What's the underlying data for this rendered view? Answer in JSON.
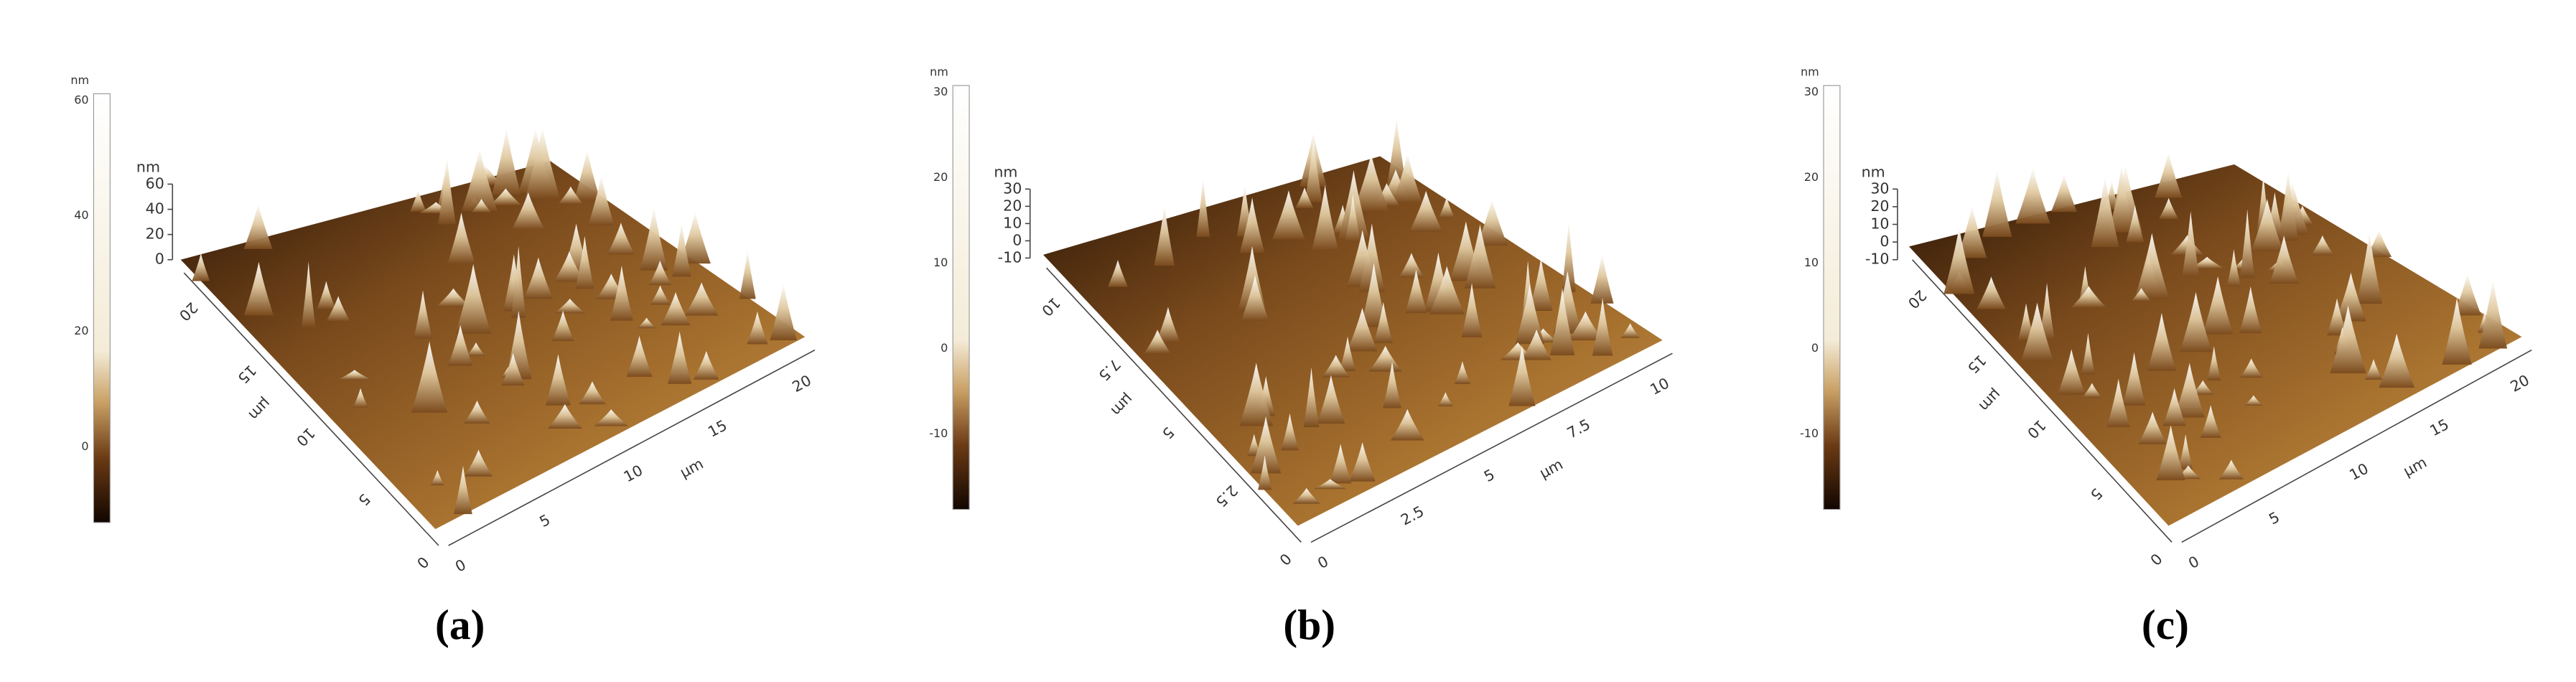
{
  "panels": [
    {
      "label": "(a)",
      "colorbar": {
        "unit": "nm",
        "ticks": [
          "60",
          "40",
          "20",
          "0"
        ]
      },
      "z_axis": {
        "unit": "nm",
        "ticks": [
          "60",
          "40",
          "20",
          "0"
        ]
      },
      "y_axis": {
        "unit": "µm",
        "ticks": [
          "0",
          "5",
          "10",
          "15",
          "20"
        ]
      },
      "x_axis": {
        "unit": "µm",
        "ticks": [
          "0",
          "5",
          "10",
          "15",
          "20"
        ]
      }
    },
    {
      "label": "(b)",
      "colorbar": {
        "unit": "nm",
        "ticks": [
          "30",
          "20",
          "10",
          "0",
          "-10"
        ]
      },
      "z_axis": {
        "unit": "nm",
        "ticks": [
          "30",
          "20",
          "10",
          "0",
          "-10"
        ]
      },
      "y_axis": {
        "unit": "µm",
        "ticks": [
          "0",
          "2.5",
          "5",
          "7.5",
          "10"
        ]
      },
      "x_axis": {
        "unit": "µm",
        "ticks": [
          "0",
          "2.5",
          "5",
          "7.5",
          "10"
        ]
      }
    },
    {
      "label": "(c)",
      "colorbar": {
        "unit": "nm",
        "ticks": [
          "30",
          "20",
          "10",
          "0",
          "-10"
        ]
      },
      "z_axis": {
        "unit": "nm",
        "ticks": [
          "30",
          "20",
          "10",
          "0",
          "-10"
        ]
      },
      "y_axis": {
        "unit": "µm",
        "ticks": [
          "0",
          "5",
          "10",
          "15",
          "20"
        ]
      },
      "x_axis": {
        "unit": "µm",
        "ticks": [
          "0",
          "5",
          "10",
          "15",
          "20"
        ]
      }
    }
  ]
}
